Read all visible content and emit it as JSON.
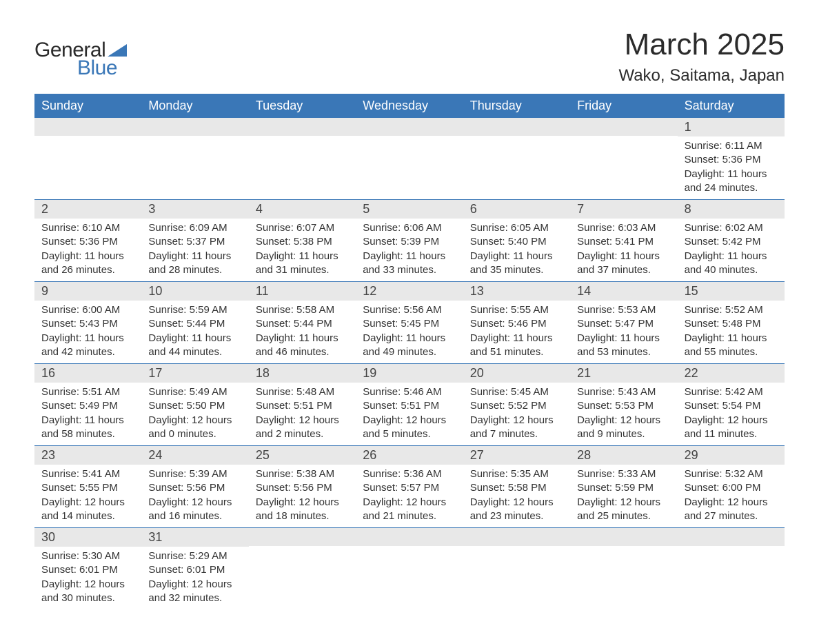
{
  "brand": {
    "text_general": "General",
    "text_blue": "Blue",
    "triangle_color": "#3a77b7"
  },
  "title": {
    "month_year": "March 2025",
    "location": "Wako, Saitama, Japan"
  },
  "colors": {
    "header_bg": "#3a77b7",
    "header_text": "#ffffff",
    "daynum_bg": "#e8e8e8",
    "text": "#333333",
    "row_border": "#3a77b7"
  },
  "weekdays": [
    "Sunday",
    "Monday",
    "Tuesday",
    "Wednesday",
    "Thursday",
    "Friday",
    "Saturday"
  ],
  "weeks": [
    [
      {
        "day": "",
        "lines": []
      },
      {
        "day": "",
        "lines": []
      },
      {
        "day": "",
        "lines": []
      },
      {
        "day": "",
        "lines": []
      },
      {
        "day": "",
        "lines": []
      },
      {
        "day": "",
        "lines": []
      },
      {
        "day": "1",
        "lines": [
          "Sunrise: 6:11 AM",
          "Sunset: 5:36 PM",
          "Daylight: 11 hours and 24 minutes."
        ]
      }
    ],
    [
      {
        "day": "2",
        "lines": [
          "Sunrise: 6:10 AM",
          "Sunset: 5:36 PM",
          "Daylight: 11 hours and 26 minutes."
        ]
      },
      {
        "day": "3",
        "lines": [
          "Sunrise: 6:09 AM",
          "Sunset: 5:37 PM",
          "Daylight: 11 hours and 28 minutes."
        ]
      },
      {
        "day": "4",
        "lines": [
          "Sunrise: 6:07 AM",
          "Sunset: 5:38 PM",
          "Daylight: 11 hours and 31 minutes."
        ]
      },
      {
        "day": "5",
        "lines": [
          "Sunrise: 6:06 AM",
          "Sunset: 5:39 PM",
          "Daylight: 11 hours and 33 minutes."
        ]
      },
      {
        "day": "6",
        "lines": [
          "Sunrise: 6:05 AM",
          "Sunset: 5:40 PM",
          "Daylight: 11 hours and 35 minutes."
        ]
      },
      {
        "day": "7",
        "lines": [
          "Sunrise: 6:03 AM",
          "Sunset: 5:41 PM",
          "Daylight: 11 hours and 37 minutes."
        ]
      },
      {
        "day": "8",
        "lines": [
          "Sunrise: 6:02 AM",
          "Sunset: 5:42 PM",
          "Daylight: 11 hours and 40 minutes."
        ]
      }
    ],
    [
      {
        "day": "9",
        "lines": [
          "Sunrise: 6:00 AM",
          "Sunset: 5:43 PM",
          "Daylight: 11 hours and 42 minutes."
        ]
      },
      {
        "day": "10",
        "lines": [
          "Sunrise: 5:59 AM",
          "Sunset: 5:44 PM",
          "Daylight: 11 hours and 44 minutes."
        ]
      },
      {
        "day": "11",
        "lines": [
          "Sunrise: 5:58 AM",
          "Sunset: 5:44 PM",
          "Daylight: 11 hours and 46 minutes."
        ]
      },
      {
        "day": "12",
        "lines": [
          "Sunrise: 5:56 AM",
          "Sunset: 5:45 PM",
          "Daylight: 11 hours and 49 minutes."
        ]
      },
      {
        "day": "13",
        "lines": [
          "Sunrise: 5:55 AM",
          "Sunset: 5:46 PM",
          "Daylight: 11 hours and 51 minutes."
        ]
      },
      {
        "day": "14",
        "lines": [
          "Sunrise: 5:53 AM",
          "Sunset: 5:47 PM",
          "Daylight: 11 hours and 53 minutes."
        ]
      },
      {
        "day": "15",
        "lines": [
          "Sunrise: 5:52 AM",
          "Sunset: 5:48 PM",
          "Daylight: 11 hours and 55 minutes."
        ]
      }
    ],
    [
      {
        "day": "16",
        "lines": [
          "Sunrise: 5:51 AM",
          "Sunset: 5:49 PM",
          "Daylight: 11 hours and 58 minutes."
        ]
      },
      {
        "day": "17",
        "lines": [
          "Sunrise: 5:49 AM",
          "Sunset: 5:50 PM",
          "Daylight: 12 hours and 0 minutes."
        ]
      },
      {
        "day": "18",
        "lines": [
          "Sunrise: 5:48 AM",
          "Sunset: 5:51 PM",
          "Daylight: 12 hours and 2 minutes."
        ]
      },
      {
        "day": "19",
        "lines": [
          "Sunrise: 5:46 AM",
          "Sunset: 5:51 PM",
          "Daylight: 12 hours and 5 minutes."
        ]
      },
      {
        "day": "20",
        "lines": [
          "Sunrise: 5:45 AM",
          "Sunset: 5:52 PM",
          "Daylight: 12 hours and 7 minutes."
        ]
      },
      {
        "day": "21",
        "lines": [
          "Sunrise: 5:43 AM",
          "Sunset: 5:53 PM",
          "Daylight: 12 hours and 9 minutes."
        ]
      },
      {
        "day": "22",
        "lines": [
          "Sunrise: 5:42 AM",
          "Sunset: 5:54 PM",
          "Daylight: 12 hours and 11 minutes."
        ]
      }
    ],
    [
      {
        "day": "23",
        "lines": [
          "Sunrise: 5:41 AM",
          "Sunset: 5:55 PM",
          "Daylight: 12 hours and 14 minutes."
        ]
      },
      {
        "day": "24",
        "lines": [
          "Sunrise: 5:39 AM",
          "Sunset: 5:56 PM",
          "Daylight: 12 hours and 16 minutes."
        ]
      },
      {
        "day": "25",
        "lines": [
          "Sunrise: 5:38 AM",
          "Sunset: 5:56 PM",
          "Daylight: 12 hours and 18 minutes."
        ]
      },
      {
        "day": "26",
        "lines": [
          "Sunrise: 5:36 AM",
          "Sunset: 5:57 PM",
          "Daylight: 12 hours and 21 minutes."
        ]
      },
      {
        "day": "27",
        "lines": [
          "Sunrise: 5:35 AM",
          "Sunset: 5:58 PM",
          "Daylight: 12 hours and 23 minutes."
        ]
      },
      {
        "day": "28",
        "lines": [
          "Sunrise: 5:33 AM",
          "Sunset: 5:59 PM",
          "Daylight: 12 hours and 25 minutes."
        ]
      },
      {
        "day": "29",
        "lines": [
          "Sunrise: 5:32 AM",
          "Sunset: 6:00 PM",
          "Daylight: 12 hours and 27 minutes."
        ]
      }
    ],
    [
      {
        "day": "30",
        "lines": [
          "Sunrise: 5:30 AM",
          "Sunset: 6:01 PM",
          "Daylight: 12 hours and 30 minutes."
        ]
      },
      {
        "day": "31",
        "lines": [
          "Sunrise: 5:29 AM",
          "Sunset: 6:01 PM",
          "Daylight: 12 hours and 32 minutes."
        ]
      },
      {
        "day": "",
        "lines": []
      },
      {
        "day": "",
        "lines": []
      },
      {
        "day": "",
        "lines": []
      },
      {
        "day": "",
        "lines": []
      },
      {
        "day": "",
        "lines": []
      }
    ]
  ]
}
